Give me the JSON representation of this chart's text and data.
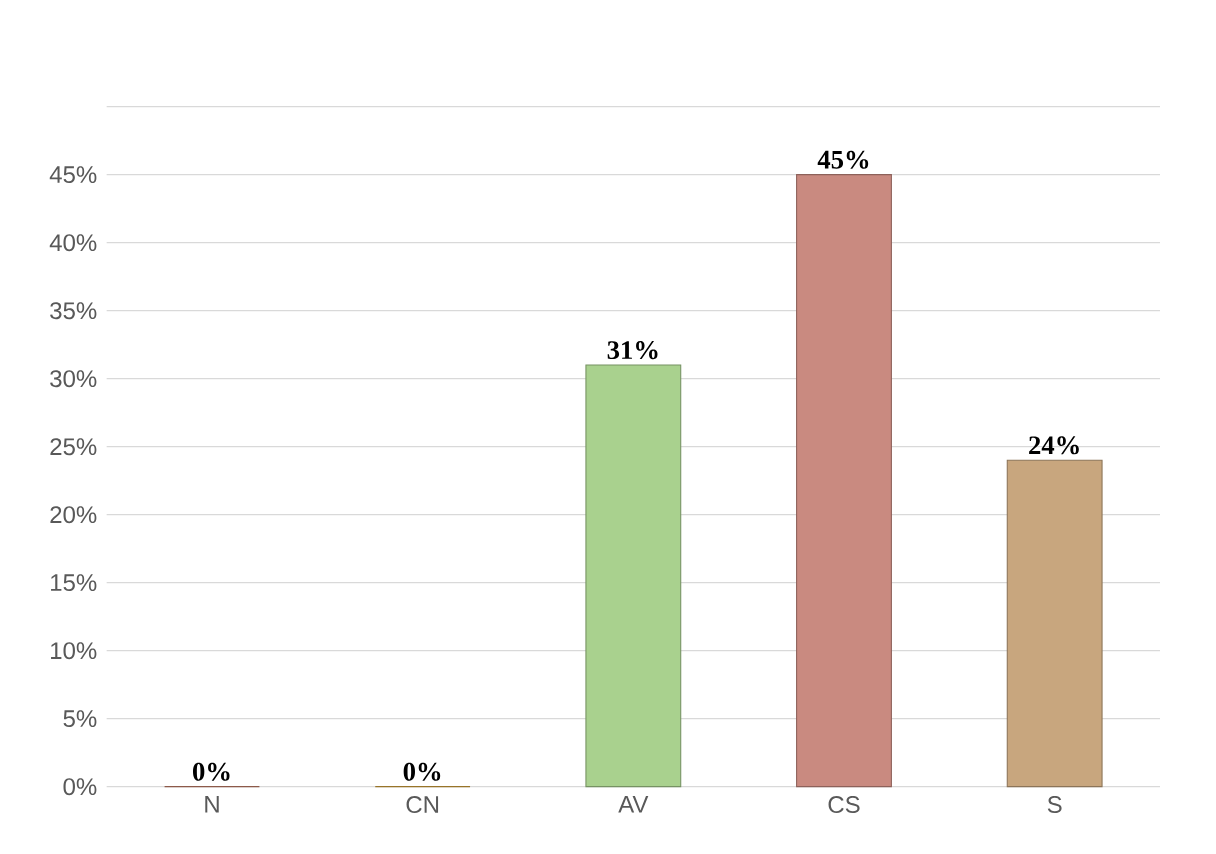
{
  "chart_data": {
    "type": "bar",
    "categories": [
      "N",
      "CN",
      "AV",
      "CS",
      "S"
    ],
    "values": [
      0,
      0,
      31,
      45,
      24
    ],
    "colors": [
      "#c9806a",
      "#d9a63a",
      "#a9d18e",
      "#c98a80",
      "#c8a67e"
    ],
    "value_labels": [
      "0%",
      "0%",
      "31%",
      "45%",
      "24%"
    ],
    "ylim": [
      0,
      50
    ],
    "yticks": [
      {
        "value": 0,
        "label": "0%"
      },
      {
        "value": 5,
        "label": "5%"
      },
      {
        "value": 10,
        "label": "10%"
      },
      {
        "value": 15,
        "label": "15%"
      },
      {
        "value": 20,
        "label": "20%"
      },
      {
        "value": 25,
        "label": "25%"
      },
      {
        "value": 30,
        "label": "30%"
      },
      {
        "value": 35,
        "label": "35%"
      },
      {
        "value": 40,
        "label": "40%"
      },
      {
        "value": 45,
        "label": "45%"
      },
      {
        "value": 50,
        "label": null
      }
    ],
    "grid": "y"
  }
}
